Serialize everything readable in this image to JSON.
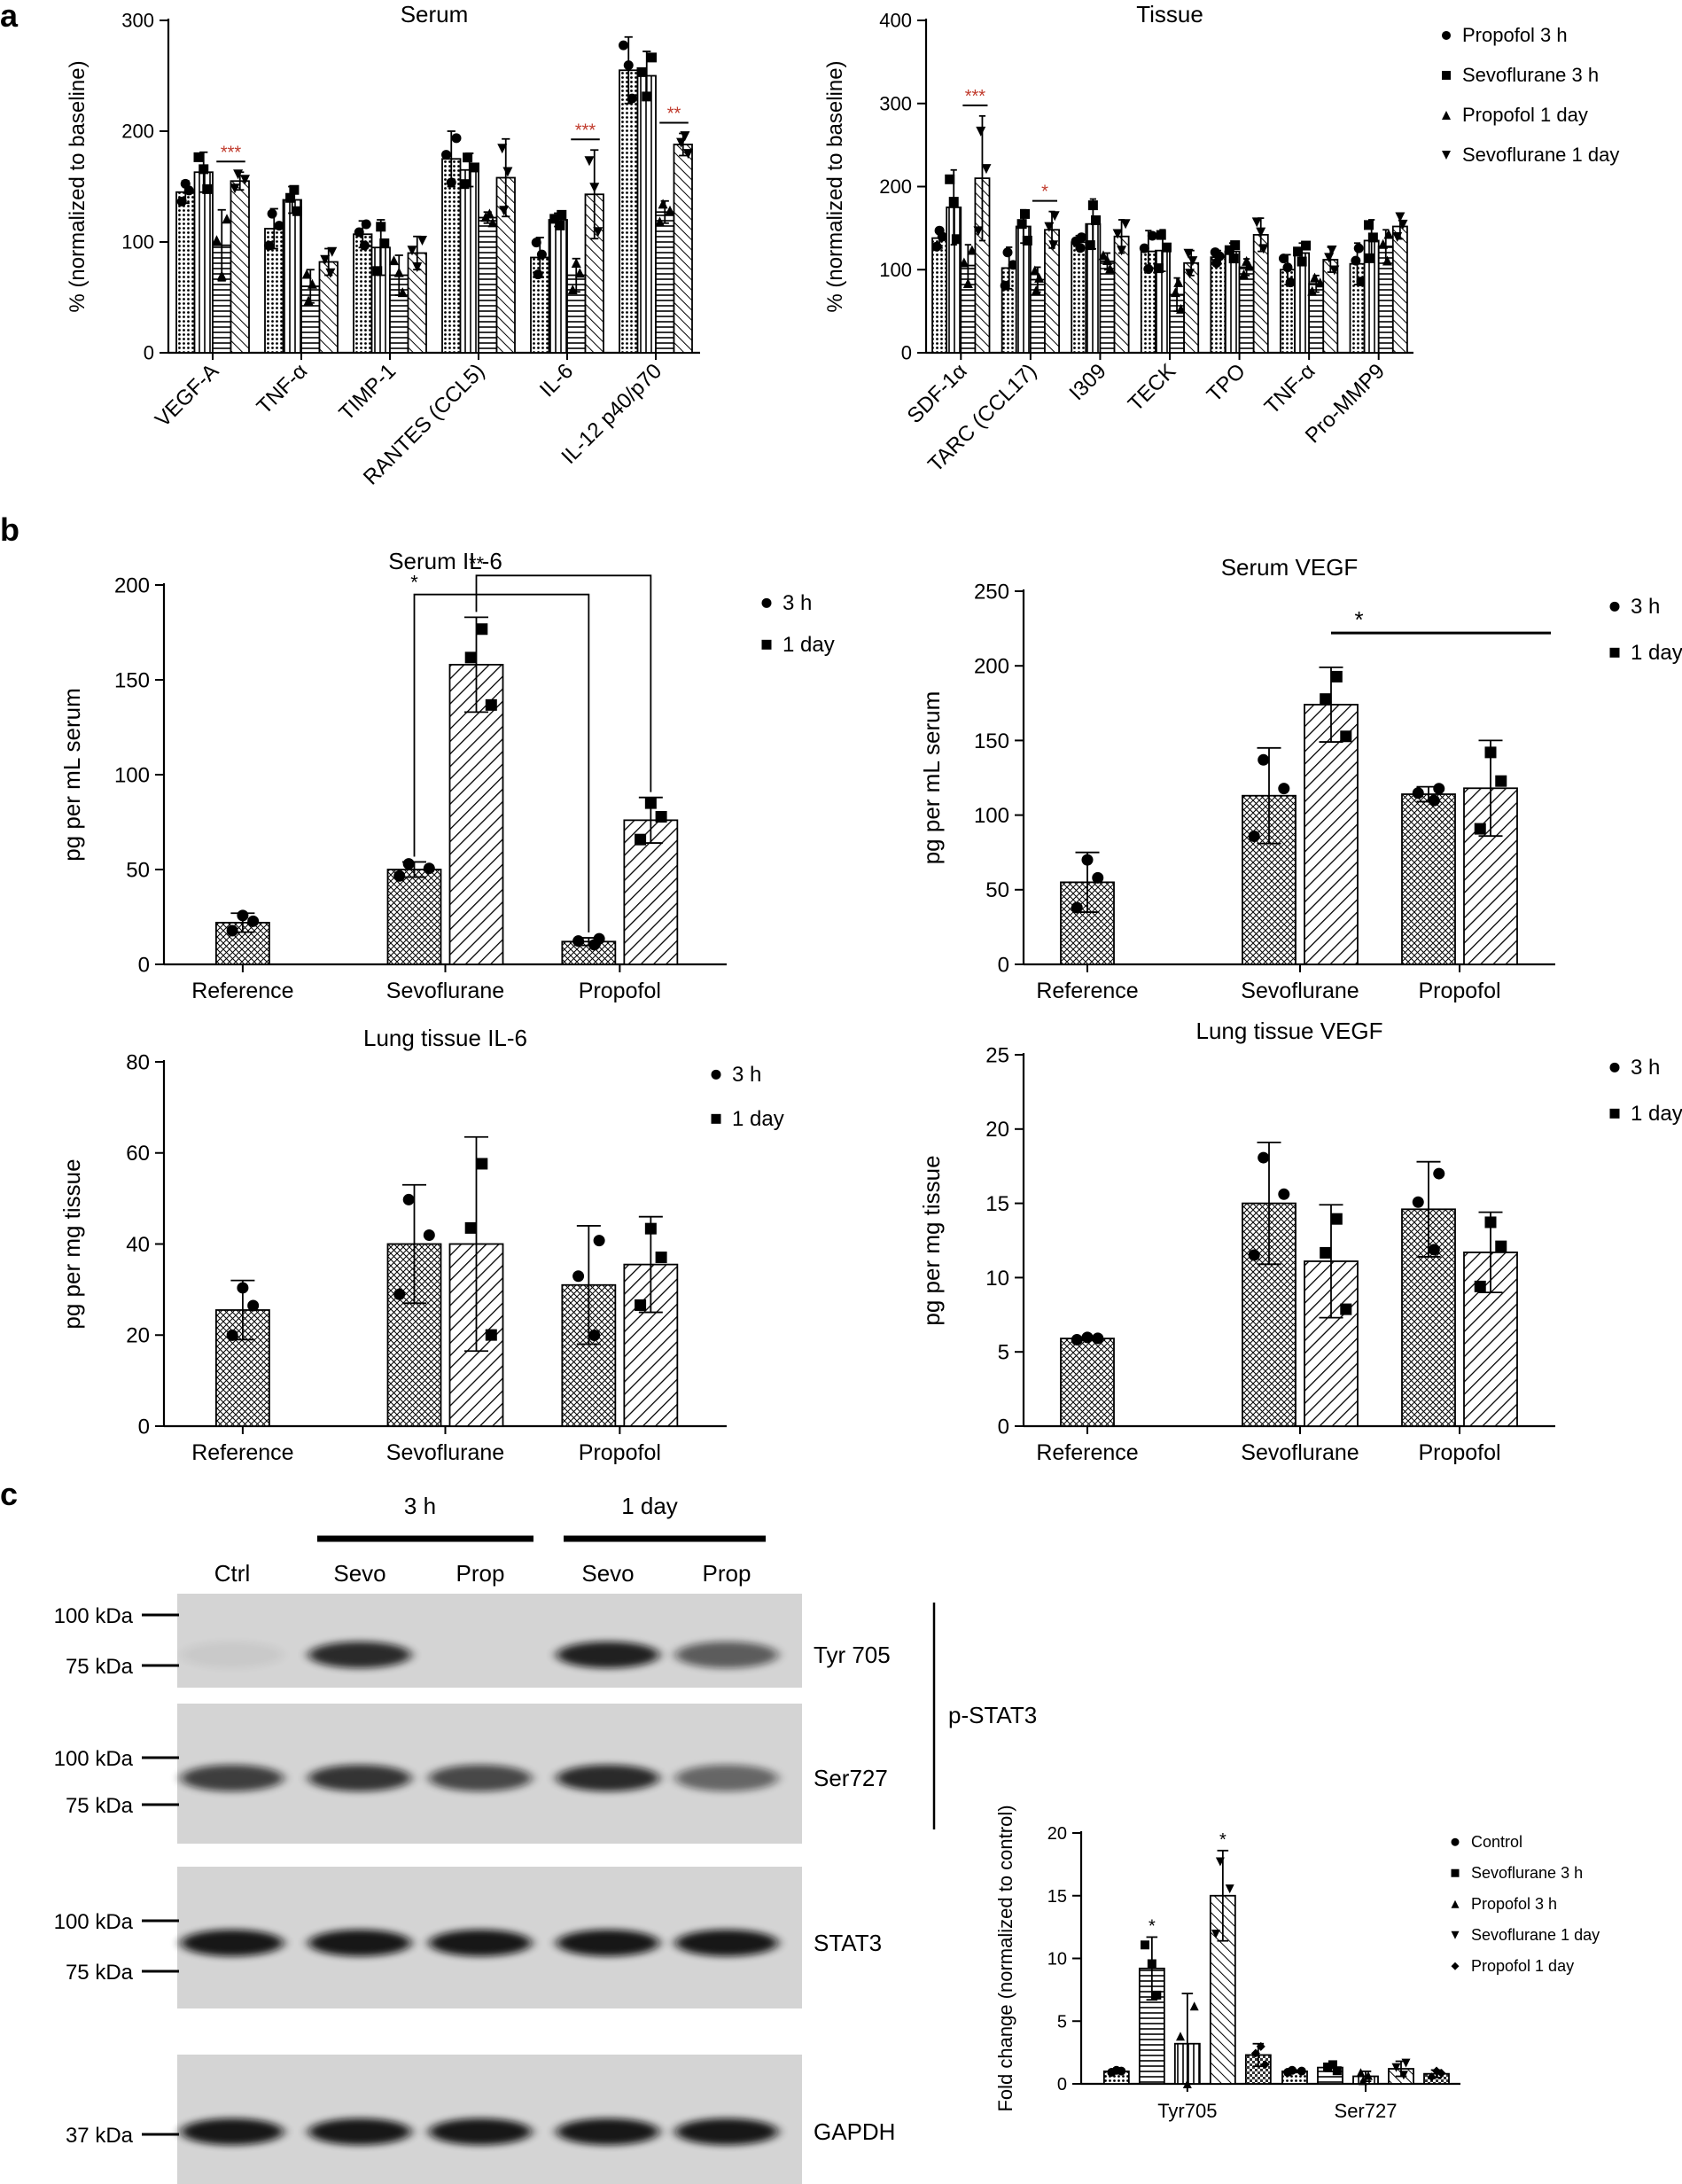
{
  "panel_labels": {
    "a": "a",
    "b": "b",
    "c": "c"
  },
  "chart_data": [
    {
      "id": "a_serum",
      "type": "bar",
      "title": "Serum",
      "ylabel": "% (normalized to baseline)",
      "ylim": [
        0,
        300
      ],
      "yticks": [
        0,
        100,
        200,
        300
      ],
      "categories": [
        "VEGF-A",
        "TNF-α",
        "TIMP-1",
        "RANTES (CCL5)",
        "IL-6",
        "IL-12 p40/p70"
      ],
      "series": [
        {
          "name": "Propofol 3 h",
          "marker": "circle",
          "values": [
            145,
            112,
            107,
            175,
            86,
            255
          ],
          "errors": [
            10,
            18,
            12,
            25,
            18,
            30
          ]
        },
        {
          "name": "Sevoflurane 3 h",
          "marker": "square",
          "values": [
            163,
            138,
            95,
            165,
            120,
            250
          ],
          "errors": [
            18,
            12,
            25,
            15,
            6,
            22
          ]
        },
        {
          "name": "Propofol 1 day",
          "marker": "triangle-up",
          "values": [
            97,
            60,
            70,
            122,
            70,
            127
          ],
          "errors": [
            32,
            15,
            18,
            5,
            15,
            10
          ]
        },
        {
          "name": "Sevoflurane 1 day",
          "marker": "triangle-down",
          "values": [
            155,
            82,
            90,
            158,
            143,
            188
          ],
          "errors": [
            8,
            12,
            15,
            35,
            40,
            10
          ]
        }
      ],
      "significance": [
        {
          "label": "***",
          "category": "VEGF-A",
          "pair": [
            2,
            3
          ]
        },
        {
          "label": "***",
          "category": "IL-6",
          "pair": [
            2,
            3
          ]
        },
        {
          "label": "**",
          "category": "IL-12 p40/p70",
          "pair": [
            2,
            3
          ]
        }
      ],
      "grid": false
    },
    {
      "id": "a_tissue",
      "type": "bar",
      "title": "Tissue",
      "ylabel": "% (normalized to baseline)",
      "ylim": [
        0,
        400
      ],
      "yticks": [
        0,
        100,
        200,
        300,
        400
      ],
      "categories": [
        "SDF-1α",
        "TARC (CCL17)",
        "I309",
        "TECK",
        "TPO",
        "TNF-α",
        "Pro-MMP9"
      ],
      "series": [
        {
          "name": "Propofol 3 h",
          "marker": "circle",
          "values": [
            138,
            102,
            133,
            122,
            115,
            100,
            107
          ],
          "errors": [
            12,
            25,
            8,
            25,
            8,
            18,
            25
          ]
        },
        {
          "name": "Sevoflurane 3 h",
          "marker": "square",
          "values": [
            175,
            152,
            155,
            123,
            122,
            120,
            135
          ],
          "errors": [
            45,
            20,
            30,
            25,
            10,
            12,
            25
          ]
        },
        {
          "name": "Propofol 1 day",
          "marker": "triangle-up",
          "values": [
            105,
            88,
            110,
            70,
            103,
            83,
            128
          ],
          "errors": [
            25,
            15,
            10,
            20,
            10,
            10,
            20
          ]
        },
        {
          "name": "Sevoflurane 1 day",
          "marker": "triangle-down",
          "values": [
            210,
            148,
            140,
            108,
            142,
            112,
            152
          ],
          "errors": [
            75,
            22,
            20,
            15,
            20,
            15,
            15
          ]
        }
      ],
      "significance": [
        {
          "label": "***",
          "category": "SDF-1α",
          "pair": [
            2,
            3
          ]
        },
        {
          "label": "*",
          "category": "TARC (CCL17)",
          "pair": [
            2,
            3
          ]
        }
      ],
      "legend": {
        "placement": "right",
        "entries": [
          "Propofol 3 h",
          "Sevoflurane 3 h",
          "Propofol 1 day",
          "Sevoflurane 1 day"
        ]
      },
      "grid": false
    },
    {
      "id": "b_serum_il6",
      "type": "bar",
      "title": "Serum IL-6",
      "ylabel": "pg per mL serum",
      "ylim": [
        0,
        200
      ],
      "yticks": [
        0,
        50,
        100,
        150,
        200
      ],
      "categories": [
        "Reference",
        "Sevoflurane",
        "Propofol"
      ],
      "series": [
        {
          "name": "3 h",
          "marker": "circle",
          "values": [
            22,
            50,
            12
          ],
          "errors": [
            5,
            4,
            2
          ]
        },
        {
          "name": "1 day",
          "marker": "square",
          "values": [
            null,
            158,
            76
          ],
          "errors": [
            null,
            25,
            12
          ]
        }
      ],
      "significance": [
        {
          "label": "*",
          "from": [
            "Sevoflurane",
            0
          ],
          "to": [
            "Propofol",
            0
          ]
        },
        {
          "label": "**",
          "from": [
            "Sevoflurane",
            1
          ],
          "to": [
            "Propofol",
            1
          ]
        }
      ],
      "legend": {
        "placement": "top-right",
        "entries": [
          "3 h",
          "1 day"
        ]
      }
    },
    {
      "id": "b_serum_vegf",
      "type": "bar",
      "title": "Serum VEGF",
      "ylabel": "pg per mL serum",
      "ylim": [
        0,
        250
      ],
      "yticks": [
        0,
        50,
        100,
        150,
        200,
        250
      ],
      "categories": [
        "Reference",
        "Sevoflurane",
        "Propofol"
      ],
      "series": [
        {
          "name": "3 h",
          "marker": "circle",
          "values": [
            55,
            113,
            114
          ],
          "errors": [
            20,
            32,
            5
          ]
        },
        {
          "name": "1 day",
          "marker": "square",
          "values": [
            null,
            174,
            118
          ],
          "errors": [
            null,
            25,
            32
          ]
        }
      ],
      "significance": [
        {
          "label": "*",
          "from": [
            "Sevoflurane",
            1
          ],
          "to": [
            "Propofol",
            1
          ]
        }
      ],
      "legend": {
        "placement": "top-right",
        "entries": [
          "3 h",
          "1 day"
        ]
      }
    },
    {
      "id": "b_lung_il6",
      "type": "bar",
      "title": "Lung tissue IL-6",
      "ylabel": "pg per mg tissue",
      "ylim": [
        0,
        80
      ],
      "yticks": [
        0,
        20,
        40,
        60,
        80
      ],
      "categories": [
        "Reference",
        "Sevoflurane",
        "Propofol"
      ],
      "series": [
        {
          "name": "3 h",
          "marker": "circle",
          "values": [
            25.5,
            40,
            31
          ],
          "errors": [
            6.5,
            13,
            13
          ]
        },
        {
          "name": "1 day",
          "marker": "square",
          "values": [
            null,
            40,
            35.5
          ],
          "errors": [
            null,
            23.5,
            10.5
          ]
        }
      ],
      "legend": {
        "placement": "top-right",
        "entries": [
          "3 h",
          "1 day"
        ]
      }
    },
    {
      "id": "b_lung_vegf",
      "type": "bar",
      "title": "Lung tissue VEGF",
      "ylabel": "pg per mg tissue",
      "ylim": [
        0,
        25
      ],
      "yticks": [
        0,
        5,
        10,
        15,
        20,
        25
      ],
      "categories": [
        "Reference",
        "Sevoflurane",
        "Propofol"
      ],
      "series": [
        {
          "name": "3 h",
          "marker": "circle",
          "values": [
            5.9,
            15,
            14.6
          ],
          "errors": [
            0.1,
            4.1,
            3.2
          ]
        },
        {
          "name": "1 day",
          "marker": "square",
          "values": [
            null,
            11.1,
            11.7
          ],
          "errors": [
            null,
            3.8,
            2.7
          ]
        }
      ],
      "legend": {
        "placement": "top-right",
        "entries": [
          "3 h",
          "1 day"
        ]
      }
    },
    {
      "id": "c_fold",
      "type": "bar",
      "ylabel": "Fold change (normalized to control)",
      "ylim": [
        0,
        20
      ],
      "yticks": [
        0,
        5,
        10,
        15,
        20
      ],
      "categories": [
        "Tyr705",
        "Ser727"
      ],
      "series": [
        {
          "name": "Control",
          "marker": "circle",
          "values": [
            1,
            1
          ],
          "errors": [
            0.1,
            0.1
          ]
        },
        {
          "name": "Sevoflurane 3 h",
          "marker": "square",
          "values": [
            9.2,
            1.3
          ],
          "errors": [
            2.5,
            0.3
          ]
        },
        {
          "name": "Propofol 3 h",
          "marker": "triangle-up",
          "values": [
            3.2,
            0.6
          ],
          "errors": [
            4,
            0.4
          ]
        },
        {
          "name": "Sevoflurane 1 day",
          "marker": "triangle-down",
          "values": [
            15,
            1.2
          ],
          "errors": [
            3.6,
            0.6
          ]
        },
        {
          "name": "Propofol 1 day",
          "marker": "diamond",
          "values": [
            2.3,
            0.8
          ],
          "errors": [
            0.9,
            0.3
          ]
        }
      ],
      "significance": [
        {
          "label": "*",
          "category": "Tyr705",
          "series": "Sevoflurane 3 h"
        },
        {
          "label": "*",
          "category": "Tyr705",
          "series": "Sevoflurane 1 day"
        }
      ],
      "legend": {
        "placement": "right",
        "entries": [
          "Control",
          "Sevoflurane 3 h",
          "Propofol 3 h",
          "Sevoflurane 1 day",
          "Propofol 1 day"
        ]
      }
    }
  ],
  "blot": {
    "group_labels": [
      "3 h",
      "1 day"
    ],
    "lanes": [
      "Ctrl",
      "Sevo",
      "Prop",
      "Sevo",
      "Prop"
    ],
    "bracket_label": "p-STAT3",
    "panels": [
      {
        "name": "Tyr 705",
        "markers": [
          "100 kDa",
          "75 kDa"
        ],
        "intensity": [
          0.05,
          0.85,
          0.0,
          0.9,
          0.6
        ]
      },
      {
        "name": "Ser727",
        "markers": [
          "100 kDa",
          "75 kDa"
        ],
        "intensity": [
          0.75,
          0.8,
          0.7,
          0.85,
          0.55
        ]
      },
      {
        "name": "STAT3",
        "markers": [
          "100 kDa",
          "75 kDa"
        ],
        "intensity": [
          0.95,
          0.95,
          0.95,
          0.95,
          0.95
        ]
      },
      {
        "name": "GAPDH",
        "markers": [
          "37 kDa"
        ],
        "intensity": [
          0.95,
          0.95,
          0.95,
          0.95,
          0.95
        ]
      }
    ]
  },
  "colors": {
    "ink": "#000000",
    "significance": "#c0392b",
    "blot_bg": "#d4d4d4",
    "band": "#111111"
  }
}
